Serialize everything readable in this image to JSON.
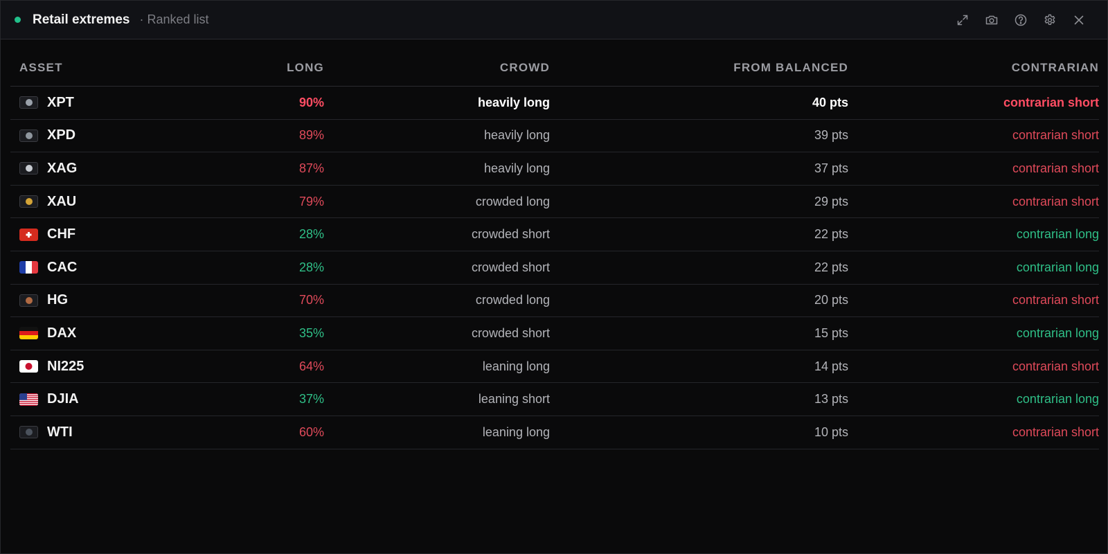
{
  "header": {
    "title": "Retail extremes",
    "subtitle": "· Ranked list",
    "status_color": "#22c08a",
    "tools": [
      "expand-icon",
      "camera-icon",
      "help-icon",
      "settings-icon",
      "close-icon"
    ]
  },
  "columns": {
    "asset": "ASSET",
    "long": "LONG",
    "crowd": "CROWD",
    "from_balanced": "FROM BALANCED",
    "contrarian": "CONTRARIAN"
  },
  "colors": {
    "bearish": "#e04a5a",
    "bullish": "#2fbf87"
  },
  "rows": [
    {
      "symbol": "XPT",
      "icon": "platinum-icon",
      "long": "90%",
      "crowd": "heavily long",
      "from_balanced": "40 pts",
      "contrarian": "contrarian short",
      "dir": "up"
    },
    {
      "symbol": "XPD",
      "icon": "palladium-icon",
      "long": "89%",
      "crowd": "heavily long",
      "from_balanced": "39 pts",
      "contrarian": "contrarian short",
      "dir": "up"
    },
    {
      "symbol": "XAG",
      "icon": "silver-icon",
      "long": "87%",
      "crowd": "heavily long",
      "from_balanced": "37 pts",
      "contrarian": "contrarian short",
      "dir": "up"
    },
    {
      "symbol": "XAU",
      "icon": "gold-icon",
      "long": "79%",
      "crowd": "crowded long",
      "from_balanced": "29 pts",
      "contrarian": "contrarian short",
      "dir": "up"
    },
    {
      "symbol": "CHF",
      "icon": "swiss-flag-icon",
      "long": "28%",
      "crowd": "crowded short",
      "from_balanced": "22 pts",
      "contrarian": "contrarian long",
      "dir": "down"
    },
    {
      "symbol": "CAC",
      "icon": "french-flag-icon",
      "long": "28%",
      "crowd": "crowded short",
      "from_balanced": "22 pts",
      "contrarian": "contrarian long",
      "dir": "down"
    },
    {
      "symbol": "HG",
      "icon": "copper-icon",
      "long": "70%",
      "crowd": "crowded long",
      "from_balanced": "20 pts",
      "contrarian": "contrarian short",
      "dir": "up"
    },
    {
      "symbol": "DAX",
      "icon": "german-flag-icon",
      "long": "35%",
      "crowd": "crowded short",
      "from_balanced": "15 pts",
      "contrarian": "contrarian long",
      "dir": "down"
    },
    {
      "symbol": "NI225",
      "icon": "japanese-flag-icon",
      "long": "64%",
      "crowd": "leaning long",
      "from_balanced": "14 pts",
      "contrarian": "contrarian short",
      "dir": "up"
    },
    {
      "symbol": "DJIA",
      "icon": "us-flag-icon",
      "long": "37%",
      "crowd": "leaning short",
      "from_balanced": "13 pts",
      "contrarian": "contrarian long",
      "dir": "down"
    },
    {
      "symbol": "WTI",
      "icon": "oil-icon",
      "long": "60%",
      "crowd": "leaning long",
      "from_balanced": "10 pts",
      "contrarian": "contrarian short",
      "dir": "up"
    }
  ]
}
